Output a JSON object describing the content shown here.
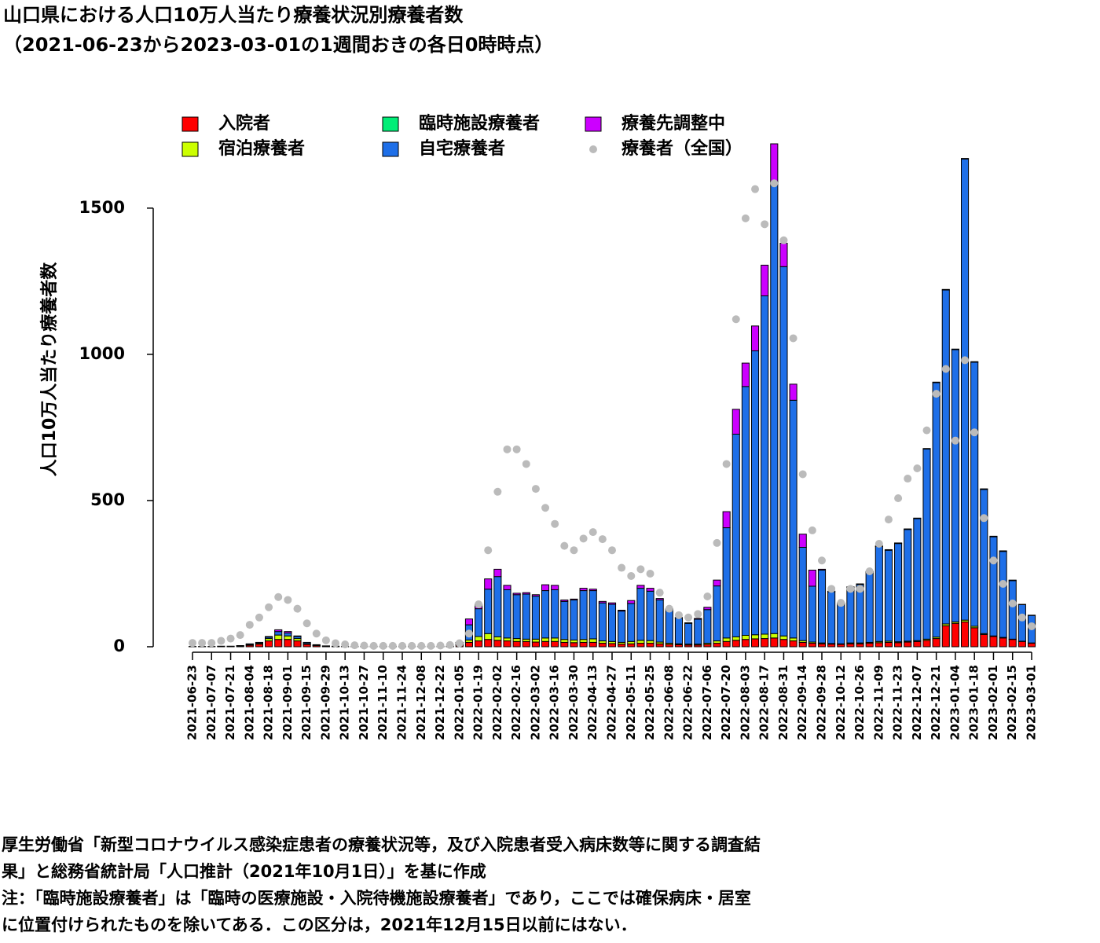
{
  "chart_data": {
    "type": "bar",
    "stacked": true,
    "title": "山口県における人口10万人当たり療養状況別療養者数",
    "subtitle": "（2021-06-23から2023-03-01の1週間おきの各日0時時点）",
    "y_label": "人口10万人当たり療養者数",
    "categories": [
      "2021-06-23",
      null,
      "2021-07-07",
      null,
      "2021-07-21",
      null,
      "2021-08-04",
      null,
      "2021-08-18",
      null,
      "2021-09-01",
      null,
      "2021-09-15",
      null,
      "2021-09-29",
      null,
      "2021-10-13",
      null,
      "2021-10-27",
      null,
      "2021-11-10",
      null,
      "2021-11-24",
      null,
      "2021-12-08",
      null,
      "2021-12-22",
      null,
      "2022-01-05",
      null,
      "2022-01-19",
      null,
      "2022-02-02",
      null,
      "2022-02-16",
      null,
      "2022-03-02",
      null,
      "2022-03-16",
      null,
      "2022-03-30",
      null,
      "2022-04-13",
      null,
      "2022-04-27",
      null,
      "2022-05-11",
      null,
      "2022-05-25",
      null,
      "2022-06-08",
      null,
      "2022-06-22",
      null,
      "2022-07-06",
      null,
      "2022-07-20",
      null,
      "2022-08-03",
      null,
      "2022-08-17",
      null,
      "2022-08-31",
      null,
      "2022-09-14",
      null,
      "2022-09-28",
      null,
      "2022-10-12",
      null,
      "2022-10-26",
      null,
      "2022-11-09",
      null,
      "2022-11-23",
      null,
      "2022-12-07",
      null,
      "2022-12-21",
      null,
      "2023-01-04",
      null,
      "2023-01-18",
      null,
      "2023-02-01",
      null,
      "2023-02-15",
      null,
      "2023-03-01"
    ],
    "series": [
      {
        "name": "入院者",
        "color": "#ff0000",
        "values": [
          0,
          0,
          0,
          1,
          1,
          2,
          5,
          9,
          20,
          25,
          25,
          20,
          8,
          4,
          2,
          1,
          0,
          0,
          0,
          0,
          0,
          0,
          0,
          0,
          0,
          1,
          1,
          1,
          6,
          15,
          20,
          25,
          22,
          20,
          18,
          18,
          16,
          18,
          18,
          15,
          14,
          15,
          15,
          12,
          11,
          9,
          10,
          12,
          12,
          10,
          8,
          7,
          6,
          6,
          8,
          12,
          18,
          22,
          25,
          27,
          28,
          30,
          25,
          20,
          15,
          12,
          10,
          9,
          8,
          10,
          10,
          12,
          14,
          15,
          14,
          16,
          18,
          22,
          28,
          72,
          80,
          85,
          65,
          42,
          35,
          30,
          25,
          18,
          12
        ]
      },
      {
        "name": "宿泊療養者",
        "color": "#ccff00",
        "values": [
          0,
          0,
          0,
          0,
          0,
          1,
          2,
          3,
          8,
          15,
          12,
          8,
          3,
          1,
          0,
          0,
          0,
          0,
          0,
          0,
          0,
          0,
          0,
          0,
          0,
          0,
          0,
          0,
          2,
          8,
          15,
          20,
          12,
          10,
          10,
          8,
          10,
          12,
          12,
          10,
          9,
          10,
          12,
          8,
          7,
          6,
          8,
          10,
          9,
          6,
          4,
          3,
          3,
          3,
          4,
          8,
          12,
          12,
          14,
          14,
          15,
          15,
          12,
          10,
          6,
          4,
          3,
          2,
          2,
          3,
          3,
          3,
          4,
          4,
          3,
          3,
          3,
          4,
          5,
          6,
          5,
          6,
          5,
          3,
          2,
          2,
          1,
          1,
          1
        ]
      },
      {
        "name": "臨時施設療養者",
        "color": "#00ee77",
        "values": [
          0,
          0,
          0,
          0,
          0,
          0,
          0,
          0,
          0,
          0,
          0,
          0,
          0,
          0,
          0,
          0,
          0,
          0,
          0,
          0,
          0,
          0,
          0,
          0,
          0,
          0,
          0,
          0,
          0,
          0,
          0,
          0,
          0,
          0,
          0,
          0,
          0,
          0,
          0,
          0,
          0,
          0,
          0,
          0,
          0,
          0,
          0,
          0,
          0,
          0,
          0,
          0,
          0,
          0,
          0,
          0,
          0,
          0,
          0,
          0,
          0,
          0,
          0,
          0,
          0,
          0,
          0,
          0,
          0,
          0,
          0,
          0,
          0,
          0,
          0,
          0,
          0,
          0,
          0,
          0,
          0,
          0,
          0,
          0,
          0,
          0,
          0,
          0,
          0
        ]
      },
      {
        "name": "自宅療養者",
        "color": "#1e6fe8",
        "values": [
          1,
          1,
          1,
          1,
          1,
          1,
          3,
          3,
          5,
          12,
          10,
          7,
          4,
          2,
          1,
          1,
          1,
          1,
          1,
          1,
          1,
          1,
          1,
          1,
          1,
          0,
          0,
          1,
          6,
          52,
          95,
          152,
          206,
          165,
          150,
          154,
          147,
          162,
          165,
          130,
          137,
          167,
          165,
          130,
          127,
          107,
          130,
          178,
          169,
          144,
          115,
          88,
          71,
          85,
          115,
          188,
          377,
          693,
          851,
          971,
          1157,
          1545,
          1263,
          813,
          319,
          191,
          249,
          177,
          138,
          190,
          200,
          241,
          325,
          311,
          336,
          382,
          417,
          650,
          870,
          1142,
          931,
          1577,
          903,
          493,
          339,
          294,
          200,
          125,
          94
        ]
      },
      {
        "name": "療養先調整中",
        "color": "#cc00ff",
        "values": [
          0,
          0,
          0,
          0,
          0,
          0,
          0,
          0,
          2,
          6,
          5,
          2,
          0,
          0,
          0,
          0,
          0,
          0,
          0,
          0,
          0,
          0,
          0,
          0,
          0,
          0,
          0,
          0,
          1,
          20,
          15,
          35,
          25,
          15,
          5,
          5,
          5,
          20,
          15,
          5,
          3,
          8,
          5,
          5,
          5,
          3,
          10,
          10,
          10,
          5,
          3,
          2,
          2,
          3,
          8,
          20,
          55,
          85,
          80,
          85,
          105,
          130,
          80,
          55,
          45,
          55,
          3,
          2,
          2,
          2,
          2,
          2,
          2,
          2,
          2,
          2,
          2,
          2,
          2,
          2,
          2,
          2,
          2,
          2,
          2,
          2,
          2,
          1,
          1
        ]
      },
      {
        "name": "療養者（全国）",
        "type": "scatter",
        "color": "#bbbbbb",
        "values": [
          13,
          13,
          13,
          20,
          28,
          40,
          75,
          100,
          135,
          170,
          160,
          130,
          80,
          45,
          22,
          12,
          8,
          5,
          4,
          3,
          3,
          3,
          3,
          3,
          3,
          3,
          4,
          6,
          12,
          45,
          145,
          330,
          530,
          675,
          675,
          625,
          540,
          475,
          420,
          345,
          330,
          370,
          392,
          368,
          330,
          270,
          242,
          265,
          250,
          185,
          130,
          108,
          100,
          112,
          172,
          355,
          625,
          1120,
          1465,
          1565,
          1445,
          1585,
          1390,
          1055,
          590,
          398,
          295,
          198,
          150,
          198,
          198,
          258,
          352,
          435,
          508,
          575,
          610,
          740,
          865,
          950,
          705,
          980,
          733,
          440,
          295,
          215,
          148,
          100,
          70
        ]
      }
    ],
    "ylim": [
      0,
      1720
    ],
    "yticks": [
      0,
      500,
      1000,
      1500
    ],
    "legend": "top",
    "notes": [
      "厚生労働省「新型コロナウイルス感染症患者の療養状況等，及び入院患者受入病床数等に関する調査結",
      "果」と総務省統計局「人口推計（2021年10月1日）」を基に作成",
      "注：「臨時施設療養者」は「臨時の医療施設・入院待機施設療養者」であり，ここでは確保病床・居室",
      "に位置付けられたものを除いてある．この区分は，2021年12月15日以前にはない．"
    ]
  }
}
